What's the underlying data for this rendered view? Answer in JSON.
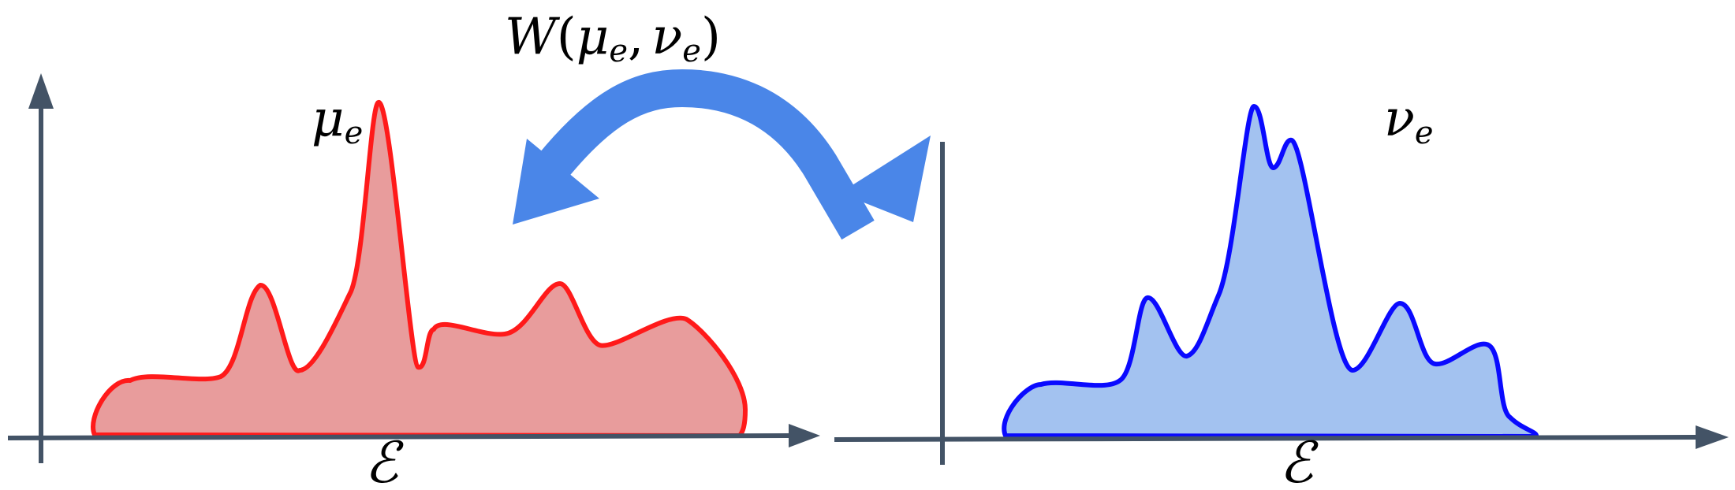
{
  "title": {
    "W": "W",
    "open_paren": "(",
    "mu": "μ",
    "mu_sub": "e",
    "comma": ",",
    "nu": "ν",
    "nu_sub": "e",
    "close_paren": ")"
  },
  "left_plot": {
    "label": "μ",
    "label_sub": "e",
    "axis_label": "ℰ"
  },
  "right_plot": {
    "label": "ν",
    "label_sub": "e",
    "axis_label": "ℰ"
  },
  "colors": {
    "axis": "#435366",
    "mu_stroke": "#ff1a1a",
    "mu_fill": "#e89c9c",
    "nu_stroke": "#0a0aff",
    "nu_fill": "#a3c2f0",
    "arrow": "#4a86e8"
  }
}
